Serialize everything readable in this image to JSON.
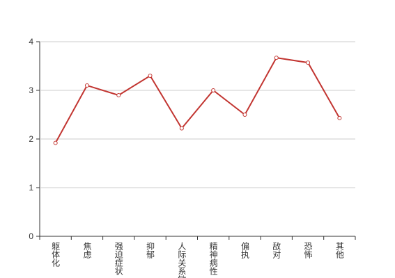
{
  "chart_data": {
    "type": "line",
    "categories": [
      "躯体化",
      "焦虑",
      "强迫症状",
      "抑郁",
      "人际关系敏感",
      "精神病性",
      "偏执",
      "敌对",
      "恐怖",
      "其他"
    ],
    "values": [
      1.92,
      3.1,
      2.9,
      3.3,
      2.22,
      3.0,
      2.5,
      3.67,
      3.57,
      2.43
    ],
    "color": "#c23531",
    "ylim": [
      0,
      4
    ],
    "yticks": [
      0,
      1,
      2,
      3,
      4
    ],
    "grid": true
  }
}
